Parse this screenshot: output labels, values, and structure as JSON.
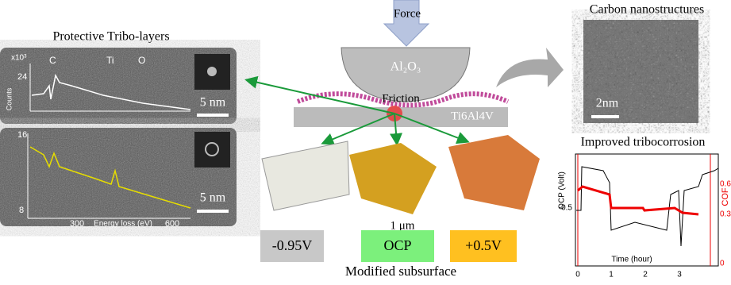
{
  "left_panel": {
    "title": "Protective Tribo-layers",
    "top_spectrum": {
      "exponent_label": "x10³",
      "y_tick": "24",
      "y_label": "Counts",
      "peaks": [
        "C",
        "Ti",
        "O"
      ],
      "scale_bar": "5 nm"
    },
    "bottom_spectrum": {
      "y_ticks": [
        "16",
        "8"
      ],
      "x_ticks": [
        "300",
        "600"
      ],
      "x_label": "Energy loss (eV)",
      "scale_bar": "5 nm"
    }
  },
  "center": {
    "force": "Force",
    "counterbody": "Al₂O₃",
    "contact": "Friction",
    "substrate": "Ti6Al4V",
    "potentials": [
      "-0.95V",
      "OCP",
      "+0.5V"
    ],
    "scale_bar": "1 μm",
    "caption": "Modified subsurface"
  },
  "right_top": {
    "title": "Carbon nanostructures",
    "scale_bar": "2nm"
  },
  "right_plot": {
    "title": "Improved tribocorrosion",
    "y_label": "OCP (Volt)",
    "y_tick": "-0.5",
    "y2_label": "COF",
    "y2_ticks": [
      "0.6",
      "0.3",
      "0"
    ],
    "x_label": "Time (hour)",
    "x_ticks": [
      "0",
      "1",
      "2",
      "3"
    ]
  }
}
